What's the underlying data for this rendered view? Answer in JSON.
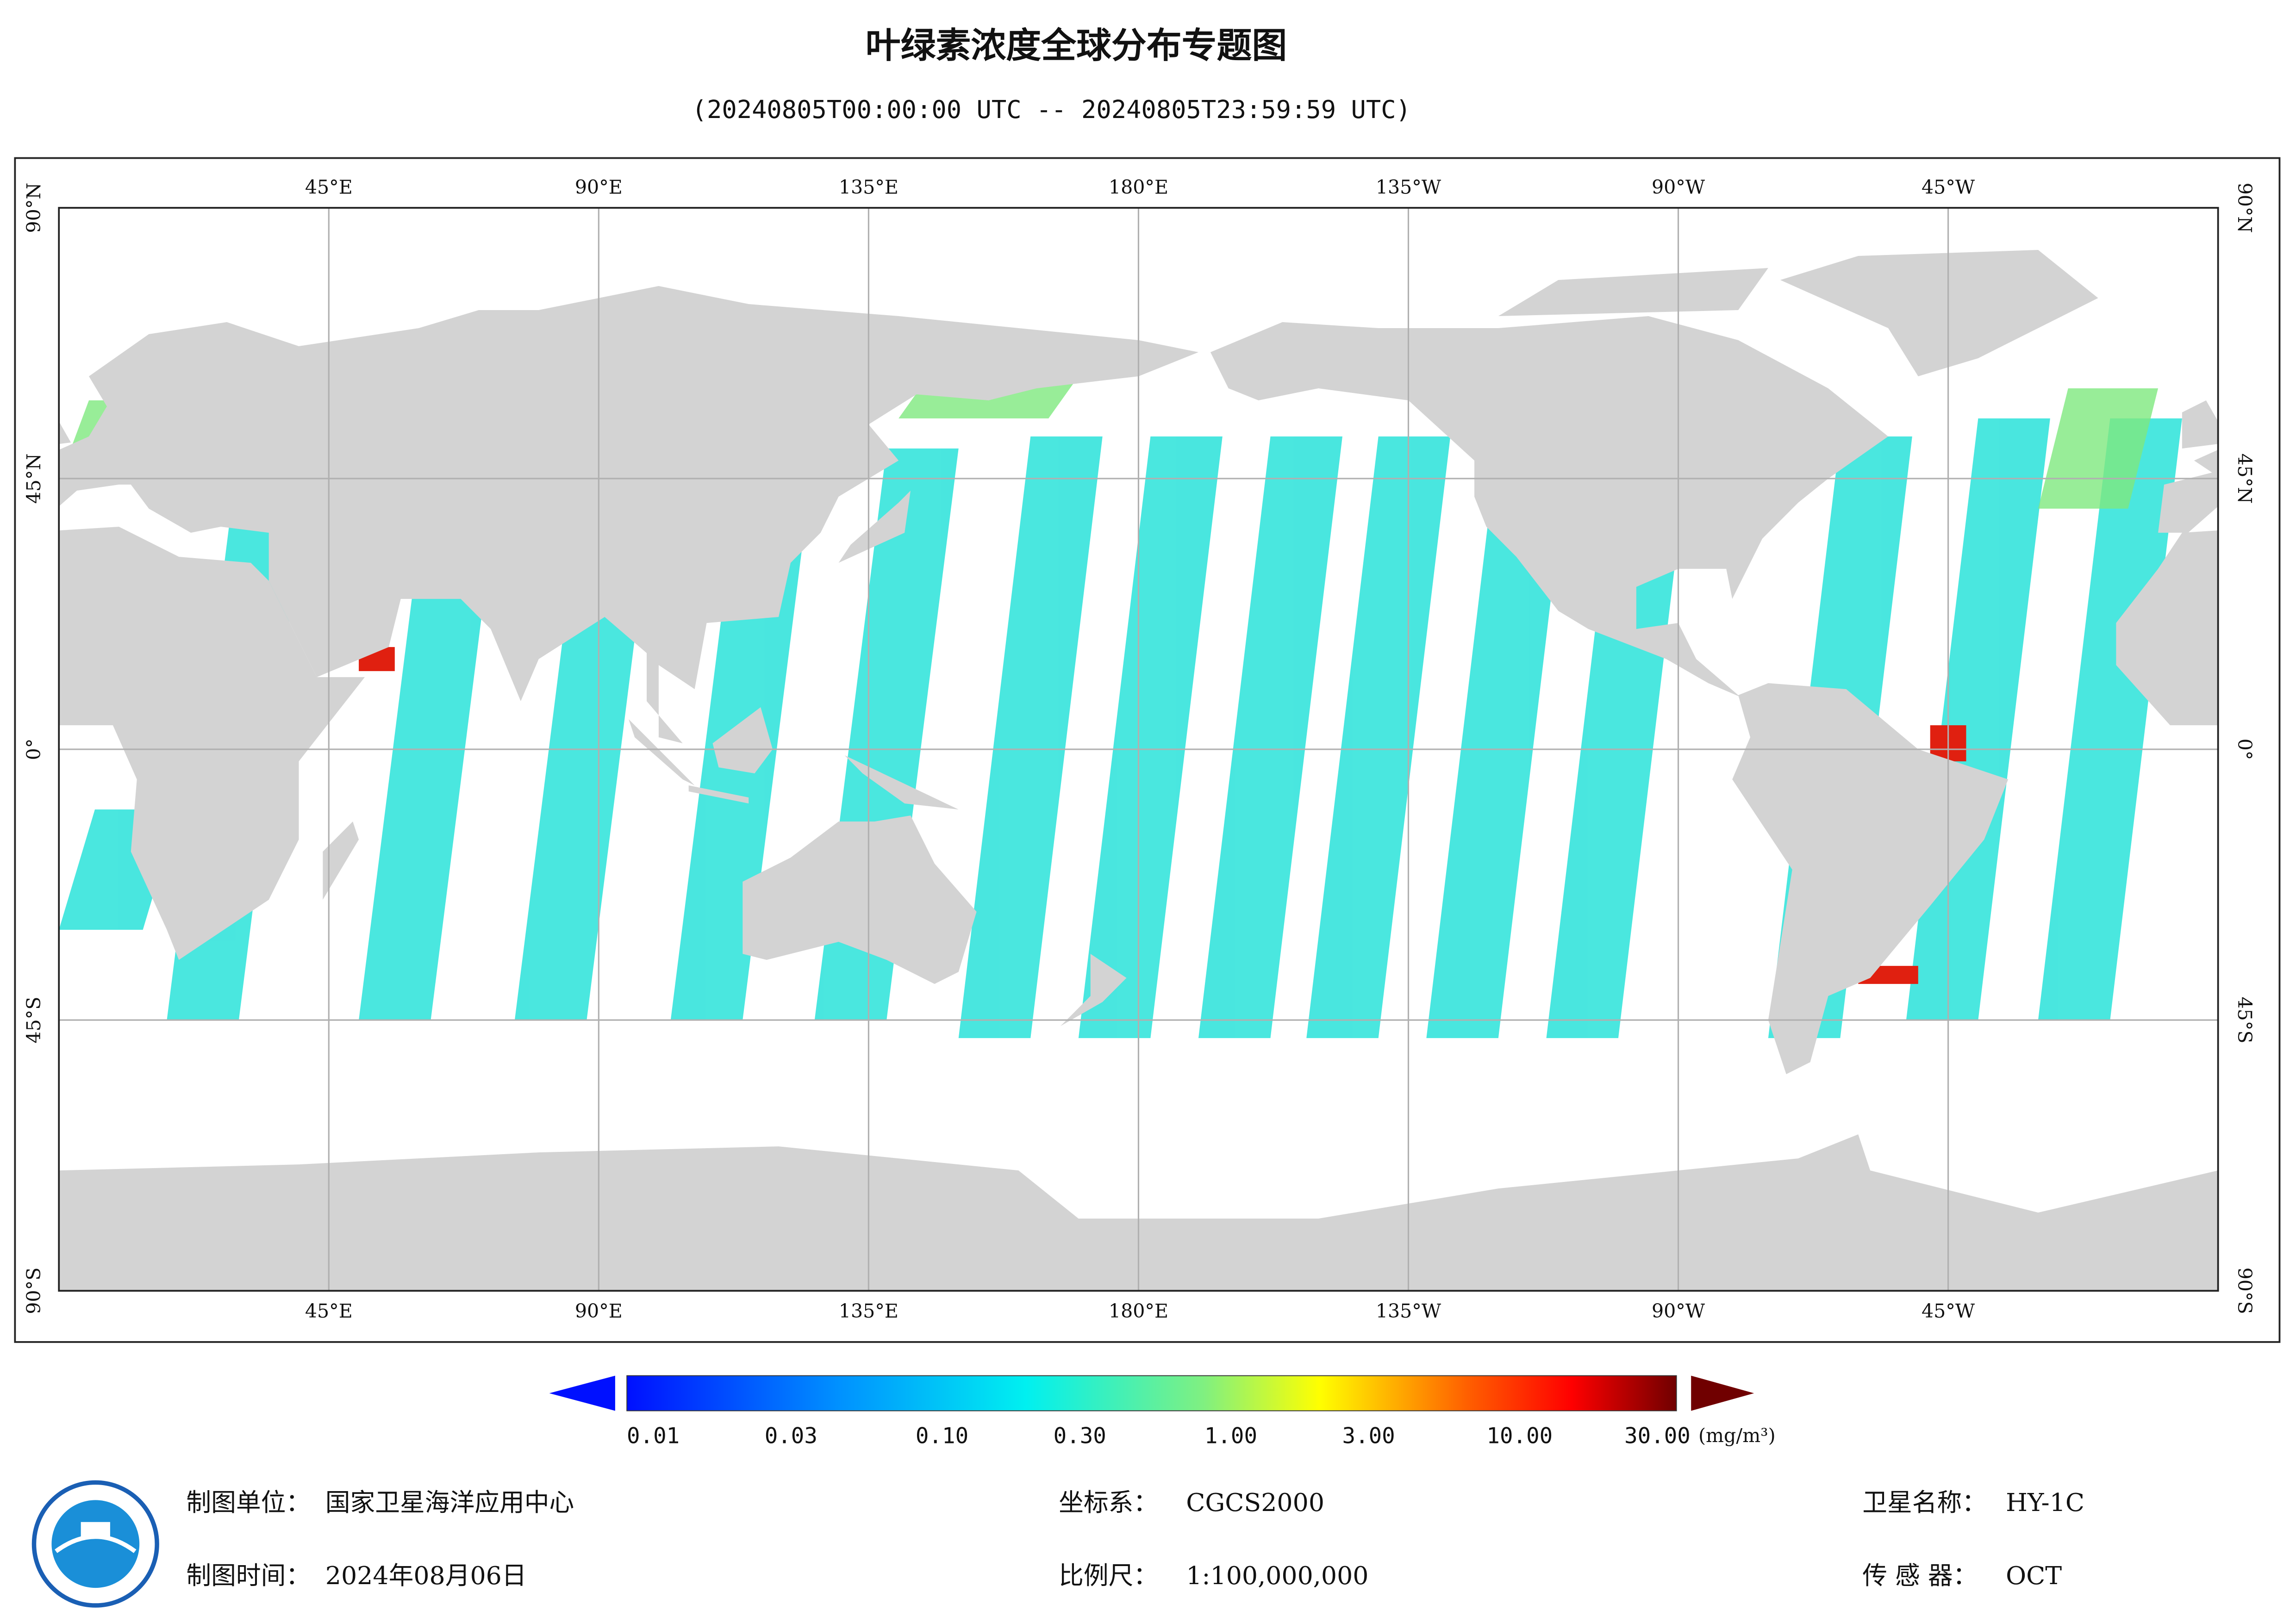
{
  "title": "叶绿素浓度全球分布专题图",
  "subtitle": "(20240805T00:00:00 UTC -- 20240805T23:59:59 UTC)",
  "map": {
    "lon_range": [
      0,
      360
    ],
    "lat_range": [
      -90,
      90
    ],
    "grid": true,
    "land_color": "#d3d3d3",
    "lon_ticks": [
      {
        "value": 45,
        "label": "45°E"
      },
      {
        "value": 90,
        "label": "90°E"
      },
      {
        "value": 135,
        "label": "135°E"
      },
      {
        "value": 180,
        "label": "180°E"
      },
      {
        "value": 225,
        "label": "135°W"
      },
      {
        "value": 270,
        "label": "90°W"
      },
      {
        "value": 315,
        "label": "45°W"
      }
    ],
    "lat_ticks": [
      {
        "value": 90,
        "label": "90°N"
      },
      {
        "value": 45,
        "label": "45°N"
      },
      {
        "value": 0,
        "label": "0°"
      },
      {
        "value": -45,
        "label": "45°S"
      },
      {
        "value": -90,
        "label": "90°S"
      }
    ]
  },
  "colorbar": {
    "range": [
      0.01,
      30
    ],
    "log_scale": true,
    "ticks": [
      0.01,
      0.03,
      {
        "value": 0.1,
        "label": "0.10"
      },
      {
        "value": 0.3,
        "label": "0.30"
      },
      {
        "value": 1,
        "label": "1.00"
      },
      {
        "value": 3,
        "label": "3.00"
      },
      {
        "value": 10,
        "label": "10.00"
      },
      {
        "value": 30,
        "label": "30.00"
      }
    ],
    "unit": "(mg/m³)"
  },
  "footer": {
    "items": [
      {
        "label": "制图单位：",
        "value": "国家卫星海洋应用中心"
      },
      {
        "label": "坐标系：",
        "value": "CGCS2000"
      },
      {
        "label": "卫星名称：",
        "value": "HY-1C"
      },
      {
        "label": "制图时间：",
        "value": "2024年08月06日"
      },
      {
        "label": "比例尺：",
        "value": "1:100,000,000"
      },
      {
        "label": "传 感 器：",
        "value": "OCT"
      }
    ]
  }
}
